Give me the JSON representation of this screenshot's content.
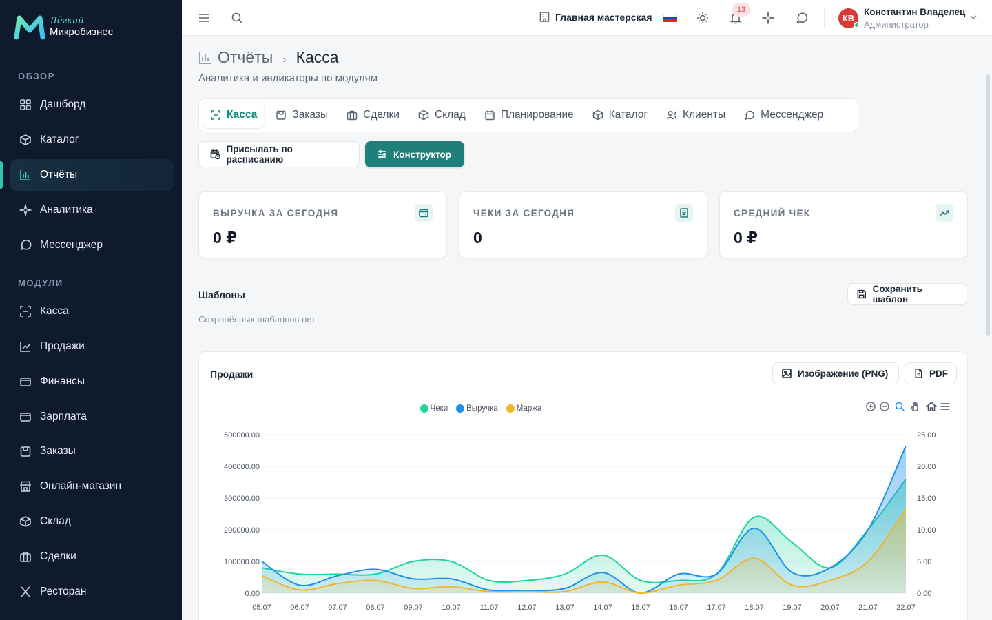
{
  "brand": {
    "line1": "Лёгкий",
    "line2": "Микробизнес"
  },
  "sidebar": {
    "sections": [
      {
        "label": "ОБЗОР",
        "items": [
          {
            "label": "Дашборд",
            "icon": "dashboard-icon"
          },
          {
            "label": "Каталог",
            "icon": "catalog-icon"
          },
          {
            "label": "Отчёты",
            "icon": "reports-icon",
            "active": true
          },
          {
            "label": "Аналитика",
            "icon": "analytics-icon"
          },
          {
            "label": "Мессенджер",
            "icon": "messenger-icon"
          }
        ]
      },
      {
        "label": "МОДУЛИ",
        "items": [
          {
            "label": "Касса",
            "icon": "cashbox-icon"
          },
          {
            "label": "Продажи",
            "icon": "sales-icon"
          },
          {
            "label": "Финансы",
            "icon": "finance-icon"
          },
          {
            "label": "Зарплата",
            "icon": "salary-icon"
          },
          {
            "label": "Заказы",
            "icon": "orders-icon"
          },
          {
            "label": "Онлайн-магазин",
            "icon": "store-icon"
          },
          {
            "label": "Склад",
            "icon": "warehouse-icon"
          },
          {
            "label": "Сделки",
            "icon": "deals-icon"
          },
          {
            "label": "Ресторан",
            "icon": "restaurant-icon"
          }
        ]
      }
    ]
  },
  "topbar": {
    "workshop": "Главная мастерская",
    "notifications_count": "13",
    "user": {
      "initials": "КВ",
      "name": "Константин Владелец",
      "role": "Администратор"
    }
  },
  "page": {
    "breadcrumb_root": "Отчёты",
    "breadcrumb_sep": "›",
    "breadcrumb_current": "Касса",
    "subtitle": "Аналитика и индикаторы по модулям"
  },
  "tabs": [
    {
      "label": "Касса",
      "icon": "scan-icon",
      "active": true
    },
    {
      "label": "Заказы",
      "icon": "orders-icon"
    },
    {
      "label": "Сделки",
      "icon": "deals-icon"
    },
    {
      "label": "Склад",
      "icon": "box-icon"
    },
    {
      "label": "Планирование",
      "icon": "calendar-icon"
    },
    {
      "label": "Каталог",
      "icon": "catalog-icon"
    },
    {
      "label": "Клиенты",
      "icon": "clients-icon"
    },
    {
      "label": "Мессенджер",
      "icon": "messenger-icon"
    }
  ],
  "actions": {
    "schedule": "Присылать по расписанию",
    "builder": "Конструктор"
  },
  "kpis": [
    {
      "label": "ВЫРУЧКА ЗА СЕГОДНЯ",
      "value": "0 ₽",
      "icon": "wallet-icon"
    },
    {
      "label": "ЧЕКИ ЗА СЕГОДНЯ",
      "value": "0",
      "icon": "receipt-icon"
    },
    {
      "label": "СРЕДНИЙ ЧЕК",
      "value": "0 ₽",
      "icon": "trend-up-icon"
    }
  ],
  "templates": {
    "title": "Шаблоны",
    "empty": "Сохранённых шаблонов нет",
    "save_label": "Сохранить шаблон"
  },
  "chart_card": {
    "title": "Продажи",
    "export_png": "Изображение (PNG)",
    "export_pdf": "PDF"
  },
  "colors": {
    "accent": "#1f7f7a",
    "checks": "#22d3a0",
    "revenue": "#1e90e8",
    "margin": "#f2b52a"
  },
  "chart_data": {
    "type": "area",
    "x": [
      "05.07",
      "06.07",
      "07.07",
      "08.07",
      "09.07",
      "10.07",
      "11.07",
      "12.07",
      "13.07",
      "14.07",
      "15.07",
      "16.07",
      "17.07",
      "18.07",
      "19.07",
      "20.07",
      "21.07",
      "22.07"
    ],
    "series": [
      {
        "name": "Чеки",
        "axis": "right",
        "values": [
          4.0,
          3.0,
          3.0,
          3.0,
          5.0,
          5.0,
          2.0,
          2.0,
          3.0,
          6.0,
          2.0,
          2.0,
          3.0,
          12.0,
          8.0,
          4.0,
          10.0,
          18.0
        ]
      },
      {
        "name": "Выручка",
        "axis": "left",
        "values": [
          100000,
          25000,
          55000,
          75000,
          45000,
          45000,
          10000,
          8000,
          15000,
          65000,
          0,
          60000,
          60000,
          205000,
          65000,
          80000,
          200000,
          465000
        ]
      },
      {
        "name": "Маржа",
        "axis": "left",
        "values": [
          55000,
          10000,
          30000,
          40000,
          15000,
          20000,
          5000,
          5000,
          5000,
          35000,
          0,
          25000,
          40000,
          110000,
          25000,
          40000,
          100000,
          265000
        ]
      }
    ],
    "yleft_ticks": [
      "0.00",
      "100000.00",
      "200000.00",
      "300000.00",
      "400000.00",
      "500000.00"
    ],
    "yright_ticks": [
      "0.00",
      "5.00",
      "10.00",
      "15.00",
      "20.00",
      "25.00"
    ],
    "yleft_range": [
      0,
      500000
    ],
    "yright_range": [
      0,
      25
    ],
    "legend_position": "top-center",
    "grid": true
  }
}
